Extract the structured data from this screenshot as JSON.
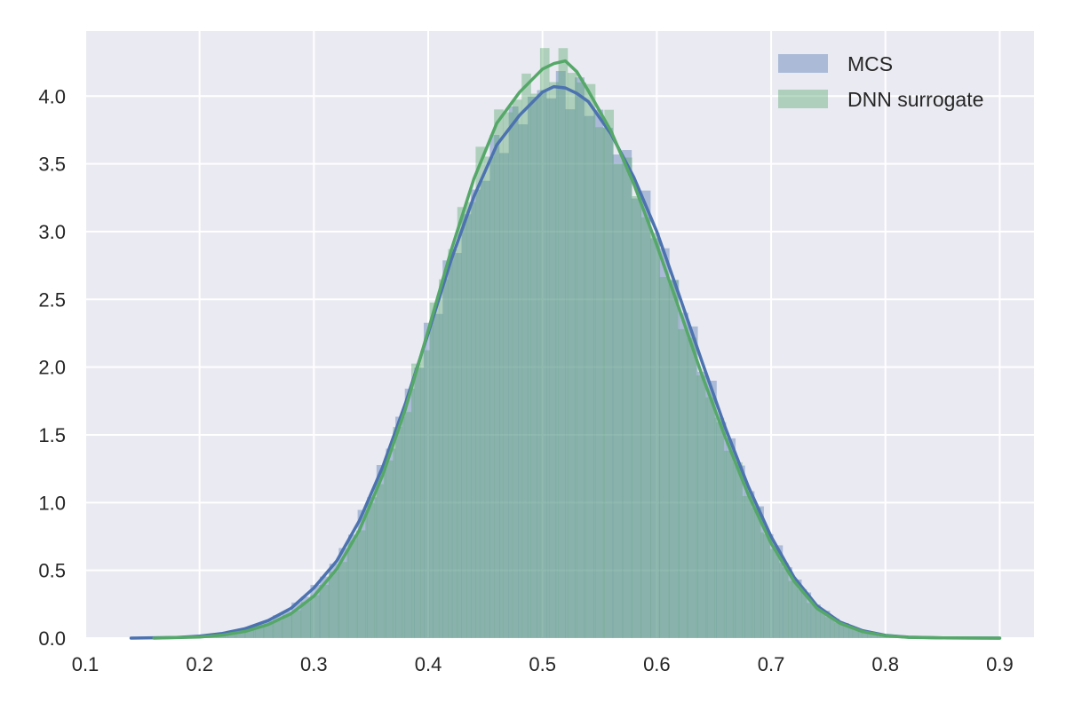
{
  "chart_data": {
    "type": "histogram",
    "title": "",
    "xlabel": "",
    "ylabel": "",
    "xlim": [
      0.1,
      0.93
    ],
    "ylim": [
      0.0,
      4.48
    ],
    "x_ticks": [
      0.1,
      0.2,
      0.3,
      0.4,
      0.5,
      0.6,
      0.7,
      0.8,
      0.9
    ],
    "x_tick_labels": [
      "0.1",
      "0.2",
      "0.3",
      "0.4",
      "0.5",
      "0.6",
      "0.7",
      "0.8",
      "0.9"
    ],
    "y_ticks": [
      0.0,
      0.5,
      1.0,
      1.5,
      2.0,
      2.5,
      3.0,
      3.5,
      4.0
    ],
    "y_tick_labels": [
      "0.0",
      "0.5",
      "1.0",
      "1.5",
      "2.0",
      "2.5",
      "3.0",
      "3.5",
      "4.0"
    ],
    "grid": true,
    "background": "#eaeaf2",
    "legend_position": "top-right",
    "series": [
      {
        "name": "MCS",
        "color": "#4c72b0",
        "bar_alpha": 0.4,
        "kde": {
          "x": [
            0.14,
            0.18,
            0.2,
            0.22,
            0.24,
            0.26,
            0.28,
            0.3,
            0.32,
            0.34,
            0.36,
            0.38,
            0.4,
            0.42,
            0.44,
            0.46,
            0.48,
            0.5,
            0.51,
            0.52,
            0.53,
            0.54,
            0.56,
            0.58,
            0.6,
            0.62,
            0.64,
            0.66,
            0.68,
            0.7,
            0.72,
            0.74,
            0.76,
            0.78,
            0.8,
            0.82,
            0.85,
            0.9
          ],
          "y": [
            0.0,
            0.005,
            0.015,
            0.035,
            0.07,
            0.13,
            0.22,
            0.37,
            0.57,
            0.87,
            1.26,
            1.73,
            2.25,
            2.79,
            3.26,
            3.64,
            3.86,
            4.03,
            4.07,
            4.06,
            4.02,
            3.96,
            3.72,
            3.4,
            3.0,
            2.52,
            2.03,
            1.55,
            1.12,
            0.75,
            0.45,
            0.24,
            0.12,
            0.055,
            0.02,
            0.007,
            0.001,
            0.0
          ]
        }
      },
      {
        "name": "DNN surrogate",
        "color": "#55a868",
        "bar_alpha": 0.4,
        "kde": {
          "x": [
            0.16,
            0.2,
            0.22,
            0.24,
            0.26,
            0.28,
            0.3,
            0.32,
            0.34,
            0.36,
            0.38,
            0.4,
            0.42,
            0.44,
            0.46,
            0.48,
            0.5,
            0.51,
            0.52,
            0.53,
            0.54,
            0.56,
            0.58,
            0.6,
            0.62,
            0.64,
            0.66,
            0.68,
            0.7,
            0.72,
            0.74,
            0.76,
            0.78,
            0.8,
            0.82,
            0.85,
            0.9
          ],
          "y": [
            0.0,
            0.008,
            0.022,
            0.05,
            0.1,
            0.18,
            0.31,
            0.51,
            0.8,
            1.2,
            1.69,
            2.27,
            2.86,
            3.39,
            3.8,
            4.03,
            4.2,
            4.24,
            4.26,
            4.18,
            4.04,
            3.74,
            3.35,
            2.9,
            2.42,
            1.93,
            1.48,
            1.06,
            0.7,
            0.42,
            0.22,
            0.11,
            0.048,
            0.018,
            0.006,
            0.001,
            0.0
          ]
        }
      }
    ]
  }
}
